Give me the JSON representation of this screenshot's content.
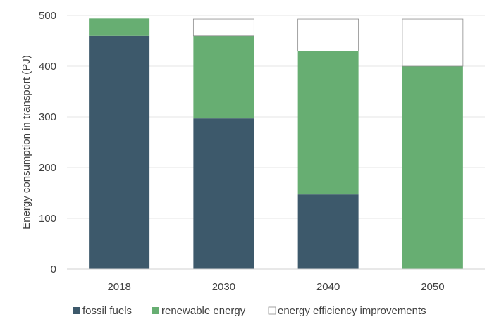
{
  "chart_data": {
    "type": "bar",
    "stacked": true,
    "categories": [
      "2018",
      "2030",
      "2040",
      "2050"
    ],
    "series": [
      {
        "name": "fossil fuels",
        "color": "#3d596b",
        "values": [
          460,
          297,
          147,
          0
        ]
      },
      {
        "name": "renewable energy",
        "color": "#67ae72",
        "values": [
          34,
          163,
          283,
          400
        ]
      },
      {
        "name": "energy efficiency improvements",
        "color": "#ffffff",
        "values": [
          0,
          33,
          63,
          93
        ]
      }
    ],
    "title": "",
    "xlabel": "",
    "ylabel": "Energy consumption in transport (PJ)",
    "ylim": [
      0,
      500
    ],
    "yticks": [
      "0",
      "100",
      "200",
      "300",
      "400",
      "500"
    ],
    "grid": true,
    "legend_position": "bottom"
  }
}
